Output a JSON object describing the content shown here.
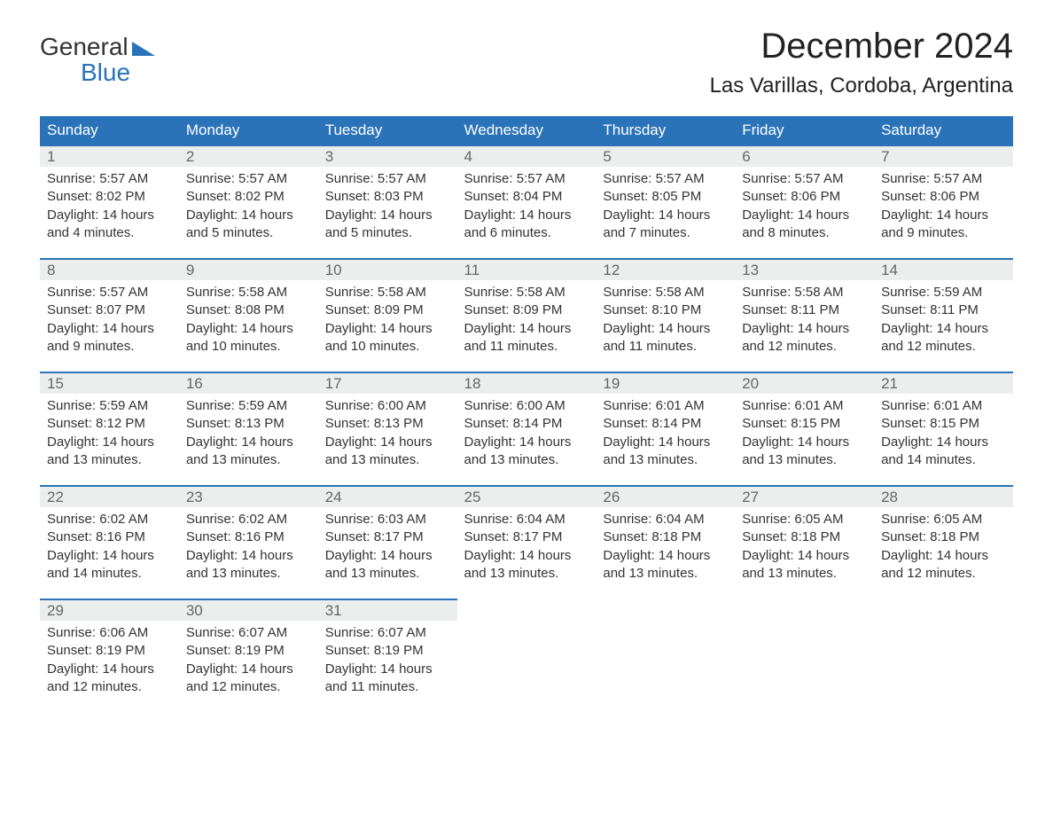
{
  "logo": {
    "line1": "General",
    "line2": "Blue",
    "icon_color": "#2a73b8",
    "text_color_line2": "#2a73b8"
  },
  "title": "December 2024",
  "location": "Las Varillas, Cordoba, Argentina",
  "colors": {
    "header_bg": "#2a73b8",
    "header_text": "#ffffff",
    "daynum_bg": "#eceded",
    "daynum_border": "#2a73b8",
    "body_text": "#333333",
    "daynum_text": "#666666",
    "page_bg": "#ffffff"
  },
  "typography": {
    "month_title_fontsize": 40,
    "location_fontsize": 24,
    "weekday_fontsize": 17,
    "daynum_fontsize": 17,
    "cell_fontsize": 15
  },
  "layout": {
    "columns": 7,
    "weeks": 5,
    "first_day_column": 0
  },
  "weekdays": [
    "Sunday",
    "Monday",
    "Tuesday",
    "Wednesday",
    "Thursday",
    "Friday",
    "Saturday"
  ],
  "days": [
    {
      "n": 1,
      "sunrise": "5:57 AM",
      "sunset": "8:02 PM",
      "daylight": "14 hours and 4 minutes."
    },
    {
      "n": 2,
      "sunrise": "5:57 AM",
      "sunset": "8:02 PM",
      "daylight": "14 hours and 5 minutes."
    },
    {
      "n": 3,
      "sunrise": "5:57 AM",
      "sunset": "8:03 PM",
      "daylight": "14 hours and 5 minutes."
    },
    {
      "n": 4,
      "sunrise": "5:57 AM",
      "sunset": "8:04 PM",
      "daylight": "14 hours and 6 minutes."
    },
    {
      "n": 5,
      "sunrise": "5:57 AM",
      "sunset": "8:05 PM",
      "daylight": "14 hours and 7 minutes."
    },
    {
      "n": 6,
      "sunrise": "5:57 AM",
      "sunset": "8:06 PM",
      "daylight": "14 hours and 8 minutes."
    },
    {
      "n": 7,
      "sunrise": "5:57 AM",
      "sunset": "8:06 PM",
      "daylight": "14 hours and 9 minutes."
    },
    {
      "n": 8,
      "sunrise": "5:57 AM",
      "sunset": "8:07 PM",
      "daylight": "14 hours and 9 minutes."
    },
    {
      "n": 9,
      "sunrise": "5:58 AM",
      "sunset": "8:08 PM",
      "daylight": "14 hours and 10 minutes."
    },
    {
      "n": 10,
      "sunrise": "5:58 AM",
      "sunset": "8:09 PM",
      "daylight": "14 hours and 10 minutes."
    },
    {
      "n": 11,
      "sunrise": "5:58 AM",
      "sunset": "8:09 PM",
      "daylight": "14 hours and 11 minutes."
    },
    {
      "n": 12,
      "sunrise": "5:58 AM",
      "sunset": "8:10 PM",
      "daylight": "14 hours and 11 minutes."
    },
    {
      "n": 13,
      "sunrise": "5:58 AM",
      "sunset": "8:11 PM",
      "daylight": "14 hours and 12 minutes."
    },
    {
      "n": 14,
      "sunrise": "5:59 AM",
      "sunset": "8:11 PM",
      "daylight": "14 hours and 12 minutes."
    },
    {
      "n": 15,
      "sunrise": "5:59 AM",
      "sunset": "8:12 PM",
      "daylight": "14 hours and 13 minutes."
    },
    {
      "n": 16,
      "sunrise": "5:59 AM",
      "sunset": "8:13 PM",
      "daylight": "14 hours and 13 minutes."
    },
    {
      "n": 17,
      "sunrise": "6:00 AM",
      "sunset": "8:13 PM",
      "daylight": "14 hours and 13 minutes."
    },
    {
      "n": 18,
      "sunrise": "6:00 AM",
      "sunset": "8:14 PM",
      "daylight": "14 hours and 13 minutes."
    },
    {
      "n": 19,
      "sunrise": "6:01 AM",
      "sunset": "8:14 PM",
      "daylight": "14 hours and 13 minutes."
    },
    {
      "n": 20,
      "sunrise": "6:01 AM",
      "sunset": "8:15 PM",
      "daylight": "14 hours and 13 minutes."
    },
    {
      "n": 21,
      "sunrise": "6:01 AM",
      "sunset": "8:15 PM",
      "daylight": "14 hours and 14 minutes."
    },
    {
      "n": 22,
      "sunrise": "6:02 AM",
      "sunset": "8:16 PM",
      "daylight": "14 hours and 14 minutes."
    },
    {
      "n": 23,
      "sunrise": "6:02 AM",
      "sunset": "8:16 PM",
      "daylight": "14 hours and 13 minutes."
    },
    {
      "n": 24,
      "sunrise": "6:03 AM",
      "sunset": "8:17 PM",
      "daylight": "14 hours and 13 minutes."
    },
    {
      "n": 25,
      "sunrise": "6:04 AM",
      "sunset": "8:17 PM",
      "daylight": "14 hours and 13 minutes."
    },
    {
      "n": 26,
      "sunrise": "6:04 AM",
      "sunset": "8:18 PM",
      "daylight": "14 hours and 13 minutes."
    },
    {
      "n": 27,
      "sunrise": "6:05 AM",
      "sunset": "8:18 PM",
      "daylight": "14 hours and 13 minutes."
    },
    {
      "n": 28,
      "sunrise": "6:05 AM",
      "sunset": "8:18 PM",
      "daylight": "14 hours and 12 minutes."
    },
    {
      "n": 29,
      "sunrise": "6:06 AM",
      "sunset": "8:19 PM",
      "daylight": "14 hours and 12 minutes."
    },
    {
      "n": 30,
      "sunrise": "6:07 AM",
      "sunset": "8:19 PM",
      "daylight": "14 hours and 12 minutes."
    },
    {
      "n": 31,
      "sunrise": "6:07 AM",
      "sunset": "8:19 PM",
      "daylight": "14 hours and 11 minutes."
    }
  ],
  "labels": {
    "sunrise": "Sunrise:",
    "sunset": "Sunset:",
    "daylight": "Daylight:"
  }
}
